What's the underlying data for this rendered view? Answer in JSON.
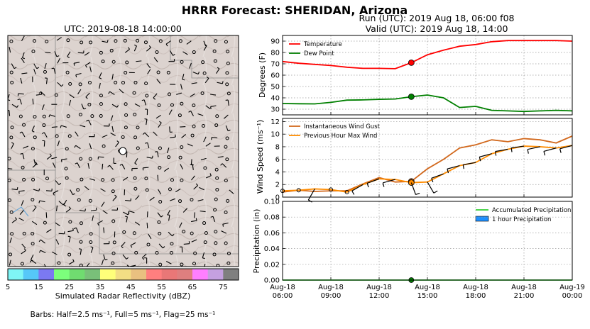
{
  "page": {
    "title": "HRRR Forecast: SHERIDAN, Arizona",
    "run_label": "Run (UTC): 2019 Aug 18, 06:00 f08",
    "valid_label": "Valid (UTC): 2019 Aug 18, 14:00",
    "map_title": "UTC: 2019-08-18 14:00:00",
    "barbs_note": "Barbs: Half=2.5 ms⁻¹, Full=5 ms⁻¹, Flag=25 ms⁻¹"
  },
  "colorbar": {
    "label": "Simulated Radar Reflectivity (dBZ)",
    "ticks": [
      "5",
      "15",
      "25",
      "35",
      "45",
      "55",
      "65",
      "75"
    ],
    "colors": [
      "#7ff6f6",
      "#56c8f8",
      "#7b79f2",
      "#7cff7c",
      "#70dc70",
      "#79c079",
      "#ffff7a",
      "#f3de84",
      "#e9c080",
      "#ff7f7f",
      "#e97777",
      "#de7f7f",
      "#ff7fff",
      "#c5a0e0",
      "#7f7f7f"
    ]
  },
  "colors": {
    "temperature": "#ff0000",
    "dewpoint": "#008000",
    "gust": "#d2691e",
    "maxwind": "#ff8c00",
    "accum_precip": "#32cd32",
    "hourly_precip": "#1e90ff",
    "map_terrain": "#dcd3cf"
  },
  "chart_data": [
    {
      "type": "line",
      "ylabel": "Degrees (F)",
      "ylim": [
        25,
        95
      ],
      "yticks": [
        "30",
        "40",
        "50",
        "60",
        "70",
        "80",
        "90"
      ],
      "grid": true,
      "legend": "top-left",
      "x_hours": [
        6,
        7,
        8,
        9,
        10,
        11,
        12,
        13,
        14,
        15,
        16,
        17,
        18,
        19,
        20,
        21,
        22,
        23,
        24
      ],
      "series": [
        {
          "name": "Temperature",
          "values": [
            72,
            70.5,
            69.5,
            68.5,
            67,
            66,
            66,
            65.7,
            71,
            78,
            82,
            85.5,
            87,
            89.5,
            90.5,
            90.5,
            90.5,
            90.5,
            90
          ]
        },
        {
          "name": "Dew Point",
          "values": [
            35,
            34.8,
            34.7,
            36,
            38,
            38.2,
            38.7,
            39,
            41,
            42.5,
            40,
            31.5,
            32.5,
            29,
            28.5,
            28,
            28.5,
            29,
            28.5
          ]
        }
      ],
      "highlight_hour": 14
    },
    {
      "type": "line",
      "ylabel": "Wind Speed  (ms⁻¹)",
      "ylim": [
        0,
        12.5
      ],
      "yticks": [
        "0",
        "2",
        "4",
        "6",
        "8",
        "10",
        "12"
      ],
      "grid": true,
      "legend": "top-left",
      "x_hours": [
        6,
        7,
        8,
        9,
        10,
        11,
        12,
        13,
        14,
        15,
        16,
        17,
        18,
        19,
        20,
        21,
        22,
        23,
        24
      ],
      "series": [
        {
          "name": "Instantaneous Wind Gust",
          "values": [
            0.8,
            1.1,
            0.9,
            1.0,
            1.0,
            2.1,
            3.1,
            2.4,
            2.5,
            4.5,
            6.0,
            7.8,
            8.3,
            9.1,
            8.8,
            9.3,
            9.1,
            8.6,
            9.7
          ]
        },
        {
          "name": "Previous Hour Max Wind",
          "values": [
            1.0,
            1.1,
            1.3,
            1.2,
            0.8,
            2.0,
            2.9,
            2.8,
            2.3,
            2.4,
            3.7,
            5.0,
            5.5,
            6.9,
            7.6,
            8.1,
            8.0,
            7.8,
            8.2
          ]
        }
      ],
      "highlight_hour": 14
    },
    {
      "type": "bar",
      "ylabel": "Precipitation (in)",
      "ylim": [
        0,
        0.1
      ],
      "yticks": [
        "0.00",
        "0.02",
        "0.04",
        "0.06",
        "0.08",
        "0.10"
      ],
      "grid": true,
      "legend": "top-right",
      "xticks": [
        {
          "hour": 6,
          "l1": "Aug-18",
          "l2": "06:00"
        },
        {
          "hour": 9,
          "l1": "Aug-18",
          "l2": "09:00"
        },
        {
          "hour": 12,
          "l1": "Aug-18",
          "l2": "12:00"
        },
        {
          "hour": 15,
          "l1": "Aug-18",
          "l2": "15:00"
        },
        {
          "hour": 18,
          "l1": "Aug-18",
          "l2": "18:00"
        },
        {
          "hour": 21,
          "l1": "Aug-18",
          "l2": "21:00"
        },
        {
          "hour": 24,
          "l1": "Aug-19",
          "l2": "00:00"
        }
      ],
      "x_hours": [
        6,
        7,
        8,
        9,
        10,
        11,
        12,
        13,
        14,
        15,
        16,
        17,
        18,
        19,
        20,
        21,
        22,
        23,
        24
      ],
      "series": [
        {
          "name": "Accumulated Precipitation",
          "values": [
            0,
            0,
            0,
            0,
            0,
            0,
            0,
            0,
            0,
            0,
            0,
            0,
            0,
            0,
            0,
            0,
            0,
            0,
            0
          ]
        },
        {
          "name": "1 hour Precipitation",
          "values": [
            0,
            0,
            0,
            0,
            0,
            0,
            0,
            0,
            0,
            0,
            0,
            0,
            0,
            0,
            0,
            0,
            0,
            0,
            0
          ]
        }
      ],
      "highlight_hour": 14
    }
  ]
}
